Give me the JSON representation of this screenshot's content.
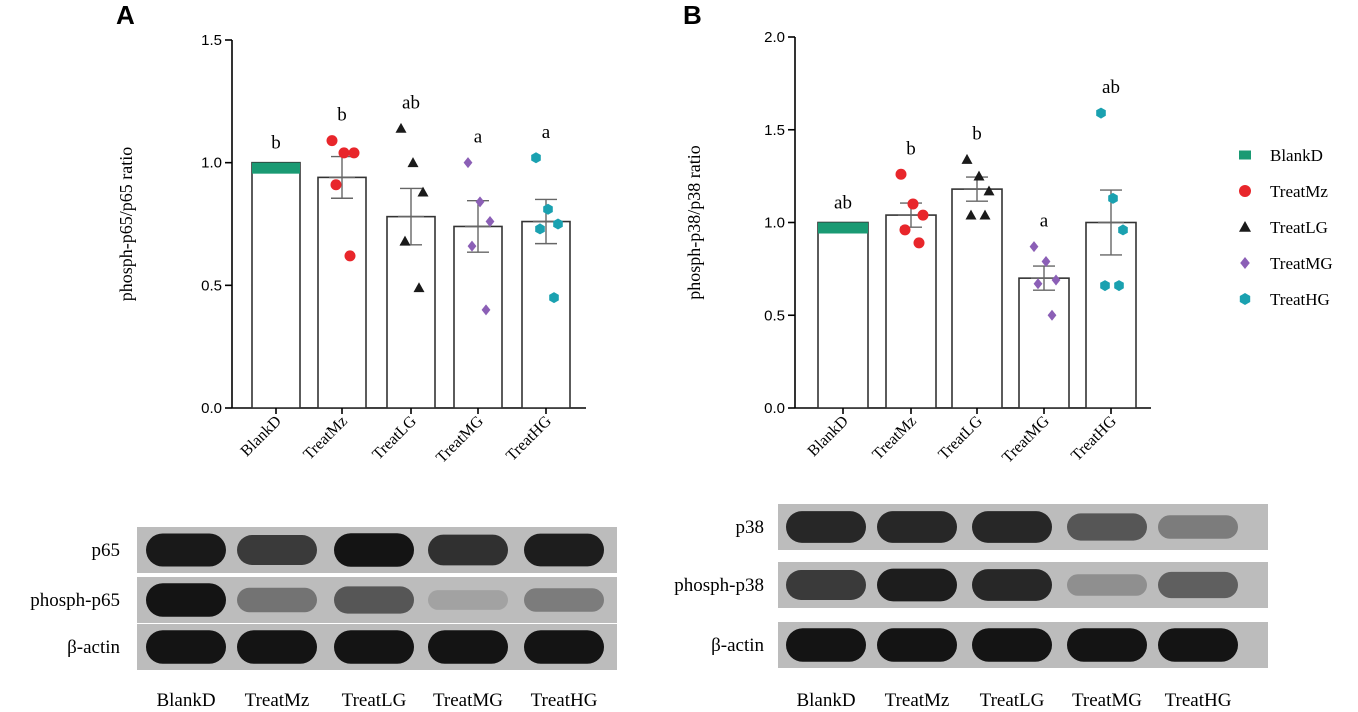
{
  "panels": [
    {
      "letter": "A"
    },
    {
      "letter": "B"
    }
  ],
  "legend": {
    "entries": [
      {
        "name": "BlankD",
        "color": "#1a9a73",
        "marker": "square"
      },
      {
        "name": "TreatMz",
        "color": "#e8262b",
        "marker": "circle"
      },
      {
        "name": "TreatLG",
        "color": "#1a1a1a",
        "marker": "triangle"
      },
      {
        "name": "TreatMG",
        "color": "#8b5fb6",
        "marker": "diamond"
      },
      {
        "name": "TreatHG",
        "color": "#1aa1b0",
        "marker": "hexagon"
      }
    ]
  },
  "chart_data": [
    {
      "type": "bar",
      "panel": "A",
      "ylabel": "phosph-p65/p65 ratio",
      "xlabel": "",
      "ylim": [
        0,
        1.5
      ],
      "yticks": [
        "0.0",
        "0.5",
        "1.0",
        "1.5"
      ],
      "categories": [
        "BlankD",
        "TreatMz",
        "TreatLG",
        "TreatMG",
        "TreatHG"
      ],
      "values": [
        1.0,
        0.94,
        0.78,
        0.74,
        0.76
      ],
      "errors": [
        0,
        0.085,
        0.115,
        0.105,
        0.09
      ],
      "significance": [
        "b",
        "b",
        "ab",
        "a",
        "a"
      ],
      "points": [
        [
          1.0
        ],
        [
          1.09,
          1.04,
          1.04,
          0.91,
          0.62
        ],
        [
          1.14,
          1.0,
          0.88,
          0.68,
          0.49
        ],
        [
          1.0,
          0.84,
          0.76,
          0.66,
          0.4
        ],
        [
          1.02,
          0.81,
          0.75,
          0.73,
          0.45
        ]
      ]
    },
    {
      "type": "bar",
      "panel": "B",
      "ylabel": "phosph-p38/p38 ratio",
      "xlabel": "",
      "ylim": [
        0,
        2.0
      ],
      "yticks": [
        "0.0",
        "0.5",
        "1.0",
        "1.5",
        "2.0"
      ],
      "categories": [
        "BlankD",
        "TreatMz",
        "TreatLG",
        "TreatMG",
        "TreatHG"
      ],
      "values": [
        1.0,
        1.04,
        1.18,
        0.7,
        1.0
      ],
      "errors": [
        0,
        0.065,
        0.065,
        0.065,
        0.175
      ],
      "significance": [
        "ab",
        "b",
        "b",
        "a",
        "ab"
      ],
      "points": [
        [
          1.0
        ],
        [
          1.26,
          1.1,
          1.04,
          0.96,
          0.89
        ],
        [
          1.34,
          1.25,
          1.17,
          1.04,
          1.04
        ],
        [
          0.87,
          0.79,
          0.69,
          0.67,
          0.5
        ],
        [
          1.59,
          1.13,
          0.96,
          0.66,
          0.66
        ]
      ]
    }
  ],
  "blots": [
    {
      "panel": "A",
      "rows": [
        {
          "label": "p65",
          "intensity": [
            0.92,
            0.75,
            0.95,
            0.8,
            0.9
          ]
        },
        {
          "label": "phosph-p65",
          "intensity": [
            0.95,
            0.45,
            0.6,
            0.2,
            0.4
          ]
        },
        {
          "label": "β-actin",
          "intensity": [
            0.95,
            0.95,
            0.95,
            0.95,
            0.95
          ]
        }
      ],
      "lanes": [
        "BlankD",
        "TreatMz",
        "TreatLG",
        "TreatMG",
        "TreatHG"
      ]
    },
    {
      "panel": "B",
      "rows": [
        {
          "label": "p38",
          "intensity": [
            0.85,
            0.85,
            0.85,
            0.6,
            0.4
          ]
        },
        {
          "label": "phosph-p38",
          "intensity": [
            0.75,
            0.9,
            0.85,
            0.3,
            0.55
          ]
        },
        {
          "label": "β-actin",
          "intensity": [
            0.95,
            0.95,
            0.95,
            0.95,
            0.95
          ]
        }
      ],
      "lanes": [
        "BlankD",
        "TreatMz",
        "TreatLG",
        "TreatMG",
        "TreatHG"
      ]
    }
  ]
}
